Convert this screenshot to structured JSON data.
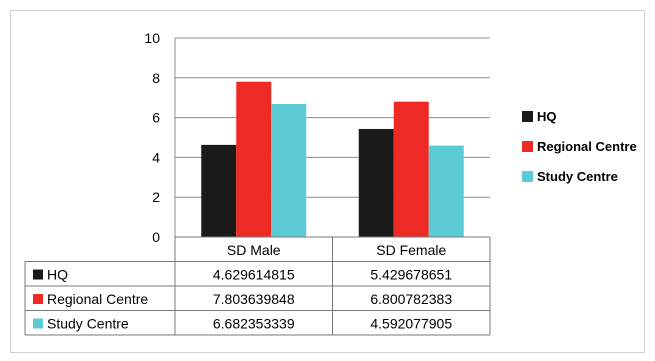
{
  "chart_data": {
    "type": "bar",
    "categories": [
      "SD Male",
      "SD Female"
    ],
    "series": [
      {
        "name": "HQ",
        "color": "#1a1a1a",
        "values": [
          4.629614815,
          5.429678651
        ],
        "labels": [
          "4.629614815",
          "5.429678651"
        ]
      },
      {
        "name": "Regional Centre",
        "color": "#ee2a24",
        "values": [
          7.803639848,
          6.800782383
        ],
        "labels": [
          "7.803639848",
          "6.800782383"
        ]
      },
      {
        "name": "Study Centre",
        "color": "#5ccbd6",
        "values": [
          6.682353339,
          4.592077905
        ],
        "labels": [
          "6.682353339",
          "4.592077905"
        ]
      }
    ],
    "ylim": [
      0,
      10
    ],
    "yticks": [
      "0",
      "2",
      "4",
      "6",
      "8",
      "10"
    ],
    "grid": true,
    "legend_position": "right",
    "data_table": true
  }
}
